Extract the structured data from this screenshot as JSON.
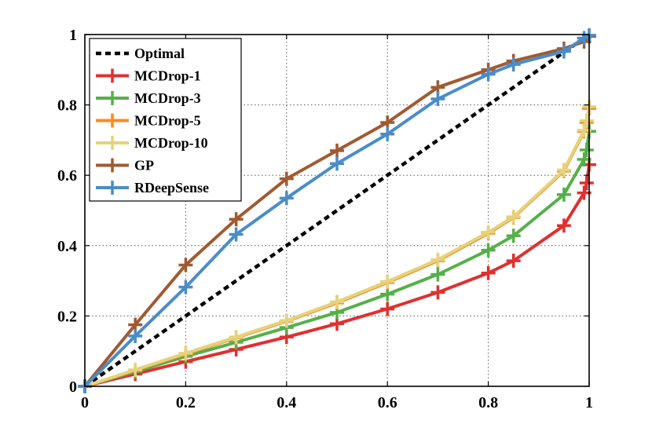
{
  "chart_data": {
    "type": "line",
    "title": "",
    "xlabel": "",
    "ylabel": "",
    "xlim": [
      0,
      1
    ],
    "ylim": [
      0,
      1
    ],
    "grid": true,
    "legend_position": "top-left",
    "x_ticks": [
      "0",
      "0.2",
      "0.4",
      "0.6",
      "0.8",
      "1"
    ],
    "y_ticks": [
      "0",
      "0.2",
      "0.4",
      "0.6",
      "0.8",
      "1"
    ],
    "series": [
      {
        "name": "Optimal",
        "color": "#000000",
        "style": "dashed",
        "marker": "none",
        "x": [
          0,
          1
        ],
        "y": [
          0,
          1
        ]
      },
      {
        "name": "MCDrop-1",
        "color": "#e03030",
        "style": "solid",
        "marker": "plus",
        "x": [
          0,
          0.1,
          0.2,
          0.3,
          0.4,
          0.5,
          0.6,
          0.7,
          0.8,
          0.85,
          0.95,
          0.99,
          0.995,
          1.0
        ],
        "y": [
          0,
          0.035,
          0.07,
          0.105,
          0.14,
          0.178,
          0.22,
          0.267,
          0.322,
          0.357,
          0.457,
          0.55,
          0.578,
          0.63
        ]
      },
      {
        "name": "MCDrop-3",
        "color": "#55b04a",
        "style": "solid",
        "marker": "plus",
        "x": [
          0,
          0.1,
          0.2,
          0.3,
          0.4,
          0.5,
          0.6,
          0.7,
          0.8,
          0.85,
          0.95,
          0.99,
          0.995,
          1.0
        ],
        "y": [
          0,
          0.042,
          0.085,
          0.125,
          0.167,
          0.21,
          0.262,
          0.318,
          0.387,
          0.428,
          0.545,
          0.645,
          0.672,
          0.725
        ]
      },
      {
        "name": "MCDrop-5",
        "color": "#f28c28",
        "style": "solid",
        "marker": "plus",
        "x": [
          0,
          0.1,
          0.2,
          0.3,
          0.4,
          0.5,
          0.6,
          0.7,
          0.8,
          0.85,
          0.95,
          0.99,
          0.995,
          1.0
        ],
        "y": [
          0,
          0.046,
          0.092,
          0.138,
          0.185,
          0.237,
          0.295,
          0.357,
          0.435,
          0.48,
          0.612,
          0.725,
          0.75,
          0.79
        ]
      },
      {
        "name": "MCDrop-10",
        "color": "#e6d27a",
        "style": "solid",
        "marker": "plus",
        "x": [
          0,
          0.1,
          0.2,
          0.3,
          0.4,
          0.5,
          0.6,
          0.7,
          0.8,
          0.85,
          0.95,
          0.99,
          0.995,
          1.0
        ],
        "y": [
          0,
          0.047,
          0.094,
          0.14,
          0.187,
          0.24,
          0.298,
          0.36,
          0.438,
          0.482,
          0.615,
          0.728,
          0.755,
          0.795
        ]
      },
      {
        "name": "GP",
        "color": "#a05a32",
        "style": "solid",
        "marker": "plus",
        "x": [
          0,
          0.1,
          0.2,
          0.3,
          0.4,
          0.5,
          0.6,
          0.7,
          0.8,
          0.85,
          0.95,
          0.99,
          1.0
        ],
        "y": [
          0,
          0.175,
          0.345,
          0.475,
          0.59,
          0.67,
          0.75,
          0.85,
          0.9,
          0.925,
          0.96,
          0.98,
          0.995
        ]
      },
      {
        "name": "RDeepSense",
        "color": "#4a8cc8",
        "style": "solid",
        "marker": "plus",
        "x": [
          0,
          0.1,
          0.2,
          0.3,
          0.4,
          0.5,
          0.6,
          0.7,
          0.8,
          0.85,
          0.95,
          0.99,
          1.0
        ],
        "y": [
          0,
          0.143,
          0.282,
          0.432,
          0.535,
          0.633,
          0.717,
          0.817,
          0.887,
          0.915,
          0.952,
          0.99,
          0.998
        ]
      }
    ]
  }
}
